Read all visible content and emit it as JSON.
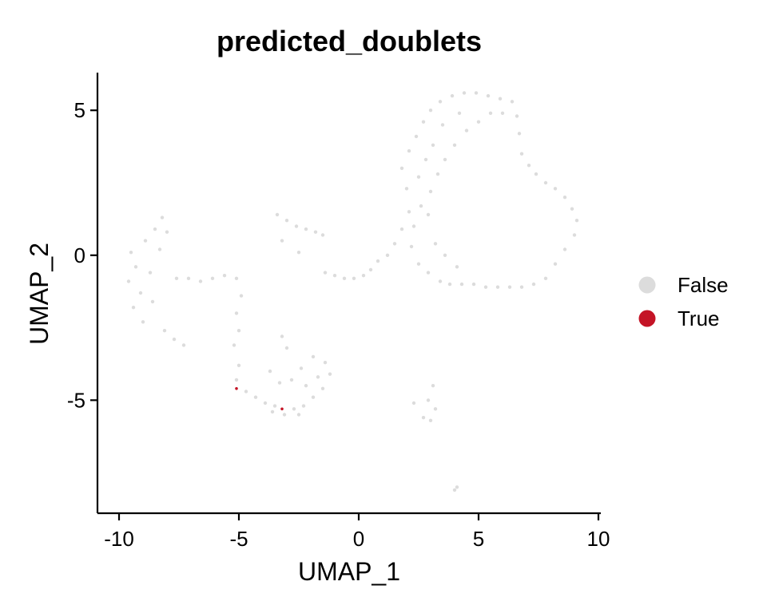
{
  "chart_data": {
    "type": "scatter",
    "title": "predicted_doublets",
    "xlabel": "UMAP_1",
    "ylabel": "UMAP_2",
    "xlim": [
      -10.9,
      10.1
    ],
    "ylim": [
      -8.9,
      6.3
    ],
    "x_ticks": [
      -10,
      -5,
      0,
      5,
      10
    ],
    "x_tick_labels": [
      "-10",
      "-5",
      "0",
      "5",
      "10"
    ],
    "y_ticks": [
      -5,
      0,
      5
    ],
    "y_tick_labels": [
      "-5",
      "0",
      "5"
    ],
    "grid": false,
    "legend_position": "right",
    "series": [
      {
        "name": "False",
        "color": "#DCDCDC",
        "points": [
          [
            -9.5,
            0.1
          ],
          [
            -9.3,
            -0.4
          ],
          [
            -9.6,
            -0.9
          ],
          [
            -9.1,
            -1.3
          ],
          [
            -9.4,
            -1.8
          ],
          [
            -9.0,
            -2.3
          ],
          [
            -8.7,
            -0.6
          ],
          [
            -8.9,
            0.5
          ],
          [
            -8.5,
            0.9
          ],
          [
            -8.2,
            1.3
          ],
          [
            -8.0,
            0.8
          ],
          [
            -8.3,
            0.2
          ],
          [
            -8.6,
            -1.6
          ],
          [
            -8.1,
            -2.6
          ],
          [
            -7.7,
            -2.9
          ],
          [
            -7.3,
            -3.1
          ],
          [
            -7.6,
            -0.8
          ],
          [
            -7.1,
            -0.8
          ],
          [
            -6.6,
            -0.9
          ],
          [
            -6.1,
            -0.8
          ],
          [
            -5.6,
            -0.7
          ],
          [
            -5.1,
            -0.8
          ],
          [
            -4.9,
            -1.4
          ],
          [
            -5.1,
            -2.0
          ],
          [
            -5.0,
            -2.6
          ],
          [
            -5.2,
            -3.1
          ],
          [
            -5.0,
            -3.8
          ],
          [
            -5.1,
            -4.3
          ],
          [
            -4.7,
            -4.7
          ],
          [
            -4.3,
            -4.9
          ],
          [
            -3.9,
            -5.1
          ],
          [
            -3.5,
            -5.2
          ],
          [
            -3.1,
            -5.5
          ],
          [
            -2.7,
            -5.3
          ],
          [
            -2.3,
            -5.2
          ],
          [
            -1.9,
            -4.9
          ],
          [
            -1.5,
            -4.6
          ],
          [
            -1.2,
            -4.1
          ],
          [
            -1.4,
            -3.7
          ],
          [
            -1.9,
            -3.5
          ],
          [
            -2.4,
            -3.9
          ],
          [
            -2.8,
            -4.3
          ],
          [
            -3.3,
            -4.4
          ],
          [
            -3.7,
            -4.0
          ],
          [
            -2.2,
            -4.5
          ],
          [
            -1.7,
            -4.2
          ],
          [
            -2.5,
            -5.5
          ],
          [
            -3.6,
            -5.4
          ],
          [
            -3.2,
            -2.8
          ],
          [
            -3.0,
            -3.2
          ],
          [
            -3.4,
            1.4
          ],
          [
            -3.0,
            1.2
          ],
          [
            -2.6,
            1.0
          ],
          [
            -2.2,
            0.9
          ],
          [
            -1.8,
            0.8
          ],
          [
            -1.5,
            0.7
          ],
          [
            -3.2,
            0.5
          ],
          [
            -2.5,
            0.1
          ],
          [
            -1.4,
            -0.6
          ],
          [
            -1.0,
            -0.7
          ],
          [
            -0.6,
            -0.8
          ],
          [
            -0.2,
            -0.8
          ],
          [
            0.2,
            -0.7
          ],
          [
            0.5,
            -0.5
          ],
          [
            0.8,
            -0.2
          ],
          [
            1.2,
            0.0
          ],
          [
            1.5,
            0.4
          ],
          [
            1.8,
            0.9
          ],
          [
            2.1,
            1.5
          ],
          [
            2.0,
            2.3
          ],
          [
            1.8,
            3.0
          ],
          [
            2.1,
            3.6
          ],
          [
            2.4,
            4.1
          ],
          [
            2.7,
            4.6
          ],
          [
            3.0,
            5.0
          ],
          [
            3.4,
            5.3
          ],
          [
            3.9,
            5.5
          ],
          [
            4.4,
            5.6
          ],
          [
            4.9,
            5.6
          ],
          [
            5.4,
            5.5
          ],
          [
            5.9,
            5.4
          ],
          [
            6.4,
            5.3
          ],
          [
            6.6,
            4.8
          ],
          [
            6.7,
            4.2
          ],
          [
            6.8,
            3.5
          ],
          [
            7.1,
            3.1
          ],
          [
            7.4,
            2.8
          ],
          [
            7.8,
            2.5
          ],
          [
            8.2,
            2.3
          ],
          [
            8.6,
            2.0
          ],
          [
            8.9,
            1.6
          ],
          [
            9.1,
            1.2
          ],
          [
            9.0,
            0.7
          ],
          [
            8.6,
            0.2
          ],
          [
            8.2,
            -0.3
          ],
          [
            7.8,
            -0.8
          ],
          [
            7.3,
            -1.0
          ],
          [
            6.8,
            -1.1
          ],
          [
            6.3,
            -1.1
          ],
          [
            5.8,
            -1.1
          ],
          [
            5.3,
            -1.1
          ],
          [
            4.8,
            -1.0
          ],
          [
            4.3,
            -1.0
          ],
          [
            3.8,
            -1.0
          ],
          [
            3.4,
            -0.9
          ],
          [
            2.9,
            -0.6
          ],
          [
            2.5,
            -0.3
          ],
          [
            2.2,
            0.3
          ],
          [
            2.3,
            1.0
          ],
          [
            2.6,
            1.7
          ],
          [
            3.0,
            2.2
          ],
          [
            3.3,
            2.8
          ],
          [
            3.6,
            3.3
          ],
          [
            4.0,
            3.8
          ],
          [
            4.5,
            4.3
          ],
          [
            5.0,
            4.6
          ],
          [
            5.5,
            4.9
          ],
          [
            6.0,
            4.9
          ],
          [
            4.2,
            4.9
          ],
          [
            3.5,
            4.5
          ],
          [
            3.1,
            3.8
          ],
          [
            2.8,
            3.3
          ],
          [
            2.5,
            2.7
          ],
          [
            3.2,
            0.4
          ],
          [
            3.6,
            0.0
          ],
          [
            4.1,
            -0.4
          ],
          [
            2.9,
            1.4
          ],
          [
            3.1,
            -4.5
          ],
          [
            2.9,
            -5.0
          ],
          [
            3.2,
            -5.3
          ],
          [
            2.7,
            -5.6
          ],
          [
            3.0,
            -5.7
          ],
          [
            2.3,
            -5.1
          ],
          [
            4.1,
            -8.0
          ],
          [
            4.0,
            -8.1
          ]
        ]
      },
      {
        "name": "True",
        "color": "#C41426",
        "points": [
          [
            -5.1,
            -4.6
          ],
          [
            -3.2,
            -5.3
          ]
        ]
      }
    ]
  }
}
